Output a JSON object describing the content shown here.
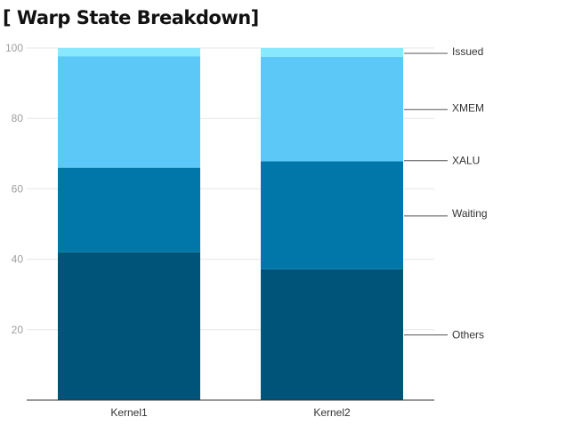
{
  "title": "[ Warp State Breakdown]",
  "chart_data": {
    "type": "bar",
    "stacked": true,
    "title": "[ Warp State Breakdown]",
    "xlabel": "",
    "ylabel": "",
    "categories": [
      "Kernel1",
      "Kernel2"
    ],
    "ylim": [
      0,
      100
    ],
    "yticks": [
      20,
      40,
      60,
      80,
      100
    ],
    "grid": true,
    "legend": "right, labels attached to Kernel2 segments",
    "series": [
      {
        "name": "Others",
        "values": [
          42,
          37.2
        ],
        "color": "#00547a"
      },
      {
        "name": "Waiting",
        "values": [
          24,
          30.6
        ],
        "color": "#0077a8"
      },
      {
        "name": "XALU",
        "values": [
          31.6,
          29.7
        ],
        "color": "#5bc8f7"
      },
      {
        "name": "XMEM",
        "values": [
          0,
          0
        ],
        "color": "#5bc8f7"
      },
      {
        "name": "Issued",
        "values": [
          2.4,
          2.5
        ],
        "color": "#88e8fd"
      }
    ]
  }
}
